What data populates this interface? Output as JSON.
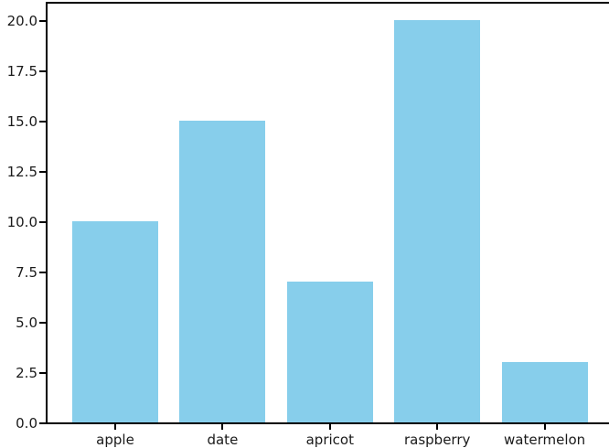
{
  "chart_data": {
    "type": "bar",
    "title": "",
    "xlabel": "",
    "ylabel": "",
    "categories": [
      "apple",
      "date",
      "apricot",
      "raspberry",
      "watermelon"
    ],
    "values": [
      10,
      15,
      7,
      20,
      3
    ],
    "yticks": [
      0.0,
      2.5,
      5.0,
      7.5,
      10.0,
      12.5,
      15.0,
      17.5,
      20.0
    ],
    "ytick_labels": [
      "0.0",
      "2.5",
      "5.0",
      "7.5",
      "10.0",
      "12.5",
      "15.0",
      "17.5",
      "20.0"
    ],
    "ylim": [
      0,
      20.9
    ],
    "grid": false,
    "legend": null,
    "bar_color": "#87CEEB",
    "axis_color": "#000000",
    "tick_label_color": "#1a1a1a",
    "background_color": "#ffffff"
  }
}
